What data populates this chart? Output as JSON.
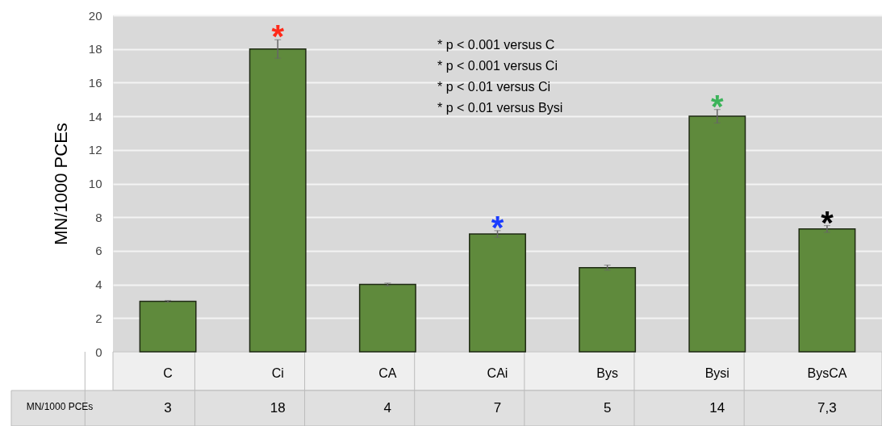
{
  "chart_data": {
    "type": "bar",
    "ylabel": "MN/1000 PCEs",
    "categories": [
      "C",
      "Ci",
      "CA",
      "CAi",
      "Bys",
      "Bysi",
      "BysCA"
    ],
    "values": [
      3,
      18,
      4,
      7,
      5,
      14,
      7.3
    ],
    "color": "#5f8a3c",
    "errors": [
      0.05,
      0.55,
      0.08,
      0.2,
      0.15,
      0.4,
      0.2
    ],
    "value_labels": [
      "3",
      "18",
      "4",
      "7",
      "5",
      "14",
      "7,3"
    ],
    "ylim": [
      0,
      20
    ],
    "yticks": [
      0,
      2,
      4,
      6,
      8,
      10,
      12,
      14,
      16,
      18,
      20
    ],
    "grid": "y",
    "annotations": [
      {
        "text": "*",
        "x": "Ci",
        "y": 18.55
      },
      {
        "text": "*",
        "x": "CAi",
        "y": 7.2
      },
      {
        "text": "*",
        "x": "Bysi",
        "y": 14.4
      },
      {
        "text": "*",
        "x": "BysCA",
        "y": 7.5
      },
      "* p < 0.001 versus C",
      "*  p < 0.001 versus Ci",
      "* p < 0.01 versus Ci",
      "* p < 0.01 versus Bysi"
    ]
  }
}
